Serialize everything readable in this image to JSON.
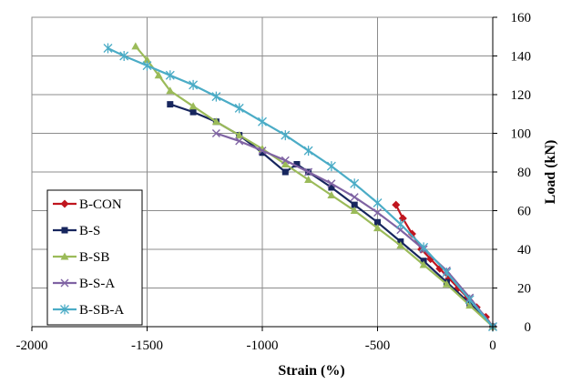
{
  "chart_data": {
    "type": "line",
    "xlabel": "Strain (%)",
    "ylabel": "Load (kN)",
    "xlim": [
      -2000,
      0
    ],
    "ylim": [
      0,
      160
    ],
    "x_ticks": [
      -2000,
      -1500,
      -1000,
      -500,
      0
    ],
    "y_ticks": [
      0,
      20,
      40,
      60,
      80,
      100,
      120,
      140,
      160
    ],
    "grid": true,
    "legend_position": "left-lower",
    "series": [
      {
        "name": "B-CON",
        "color": "#c0161f",
        "marker": "diamond",
        "x": [
          0,
          -30,
          -70,
          -110,
          -150,
          -190,
          -230,
          -270,
          -310,
          -350,
          -390,
          -420
        ],
        "y": [
          0,
          5,
          10,
          15,
          20,
          25,
          30,
          35,
          40,
          48,
          56,
          63
        ]
      },
      {
        "name": "B-S",
        "color": "#17265e",
        "marker": "square",
        "x": [
          0,
          -100,
          -200,
          -300,
          -400,
          -500,
          -600,
          -700,
          -800,
          -850,
          -900,
          -1000,
          -1100,
          -1200,
          -1300,
          -1400
        ],
        "y": [
          0,
          12,
          23,
          34,
          44,
          54,
          63,
          72,
          80,
          84,
          80,
          90,
          99,
          106,
          111,
          115
        ]
      },
      {
        "name": "B-SB",
        "color": "#9bbb59",
        "marker": "triangle",
        "x": [
          0,
          -100,
          -200,
          -300,
          -400,
          -500,
          -600,
          -700,
          -800,
          -900,
          -1000,
          -1100,
          -1200,
          -1300,
          -1400,
          -1450,
          -1500,
          -1550
        ],
        "y": [
          0,
          11,
          22,
          32,
          42,
          51,
          60,
          68,
          76,
          84,
          92,
          99,
          106,
          114,
          122,
          130,
          138,
          145
        ]
      },
      {
        "name": "B-S-A",
        "color": "#7f63a3",
        "marker": "x",
        "x": [
          0,
          -100,
          -200,
          -300,
          -400,
          -500,
          -600,
          -700,
          -800,
          -900,
          -1000,
          -1100,
          -1200
        ],
        "y": [
          0,
          15,
          29,
          40,
          50,
          59,
          67,
          74,
          80,
          86,
          91,
          96,
          100
        ]
      },
      {
        "name": "B-SB-A",
        "color": "#4bacc6",
        "marker": "star",
        "x": [
          0,
          -100,
          -200,
          -300,
          -400,
          -500,
          -600,
          -700,
          -800,
          -900,
          -1000,
          -1100,
          -1200,
          -1300,
          -1400,
          -1500,
          -1600,
          -1670
        ],
        "y": [
          0,
          14,
          28,
          41,
          53,
          64,
          74,
          83,
          91,
          99,
          106,
          113,
          119,
          125,
          130,
          135,
          140,
          144
        ]
      }
    ]
  }
}
